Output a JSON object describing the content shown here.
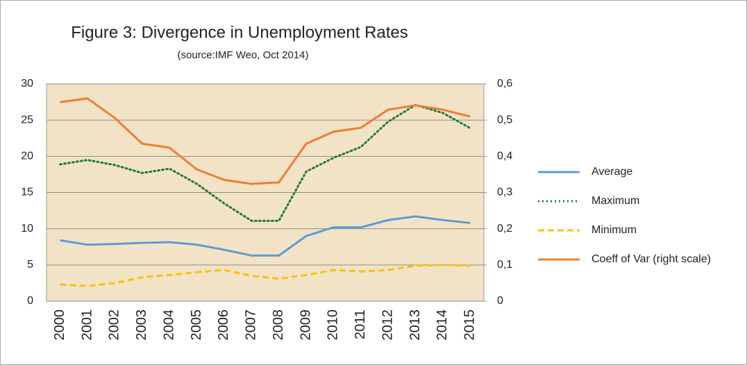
{
  "chart_data": {
    "type": "line",
    "title": "Figure 3: Divergence in Unemployment Rates",
    "subtitle": "(source:IMF Weo, Oct 2014)",
    "categories": [
      "2000",
      "2001",
      "2002",
      "2003",
      "2004",
      "2005",
      "2006",
      "2007",
      "2008",
      "2009",
      "2010",
      "2011",
      "2012",
      "2013",
      "2014",
      "2015"
    ],
    "series": [
      {
        "name": "Average",
        "color": "#5b9bd5",
        "dash": "solid",
        "values": [
          8.4,
          7.8,
          7.9,
          8.05,
          8.15,
          7.8,
          7.1,
          6.3,
          6.3,
          9.0,
          10.2,
          10.2,
          11.2,
          11.7,
          11.2,
          10.8
        ]
      },
      {
        "name": "Maximum",
        "color": "#1e7b35",
        "dash": "dotted",
        "values": [
          18.9,
          19.5,
          18.8,
          17.7,
          18.3,
          16.2,
          13.5,
          11.1,
          11.1,
          17.9,
          19.8,
          21.3,
          24.8,
          27.1,
          26.0,
          23.9
        ]
      },
      {
        "name": "Minimum",
        "color": "#ffc000",
        "dash": "dashed",
        "values": [
          2.3,
          2.1,
          2.5,
          3.3,
          3.6,
          4.0,
          4.3,
          3.5,
          3.1,
          3.6,
          4.3,
          4.1,
          4.3,
          4.9,
          5.0,
          4.9
        ]
      },
      {
        "name": "Coeff of Var (right scale)",
        "color": "#ed7d31",
        "dash": "solid",
        "axis": "y2",
        "values": [
          0.55,
          0.56,
          0.506,
          0.435,
          0.424,
          0.364,
          0.335,
          0.324,
          0.328,
          0.435,
          0.468,
          0.479,
          0.529,
          0.541,
          0.529,
          0.51
        ]
      }
    ],
    "ylim": [
      0,
      30
    ],
    "yticks": [
      0,
      5,
      10,
      15,
      20,
      25,
      30
    ],
    "y2lim": [
      0,
      0.6
    ],
    "y2ticks": [
      0,
      {
        "value": 0.1,
        "label": "0,1"
      },
      {
        "value": 0.2,
        "label": "0,2"
      },
      {
        "value": 0.3,
        "label": "0,3"
      },
      {
        "value": 0.4,
        "label": "0,4"
      },
      {
        "value": 0.5,
        "label": "0,5"
      },
      {
        "value": 0.6,
        "label": "0,6"
      }
    ],
    "grid": true,
    "legend": "right",
    "plot_background": "#f2e3c6"
  }
}
